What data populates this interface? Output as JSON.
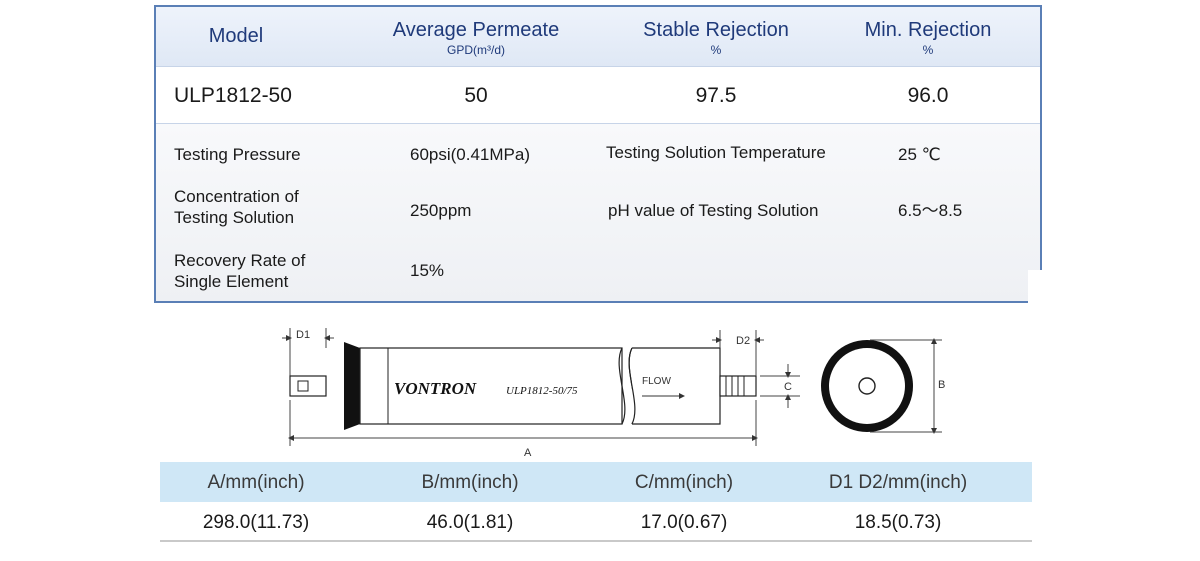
{
  "spec_table": {
    "headers": {
      "model": "Model",
      "avg_permeate": "Average Permeate",
      "avg_permeate_unit": "GPD(m³/d)",
      "stable_rejection": "Stable Rejection",
      "stable_rejection_unit": "%",
      "min_rejection": "Min. Rejection",
      "min_rejection_unit": "%"
    },
    "row": {
      "model": "ULP1812-50",
      "avg_permeate": "50",
      "stable_rejection": "97.5",
      "min_rejection": "96.0"
    },
    "conditions": {
      "testing_pressure_label": "Testing Pressure",
      "testing_pressure_value": "60psi(0.41MPa)",
      "temperature_label": "Testing Solution Temperature",
      "temperature_value": "25 ℃",
      "concentration_label_line1": "Concentration of",
      "concentration_label_line2": "Testing Solution",
      "concentration_value": "250ppm",
      "ph_label": "pH value of Testing Solution",
      "ph_value": "6.5～8.5",
      "recovery_label_line1": "Recovery Rate of",
      "recovery_label_line2": "Single Element",
      "recovery_value": "15%"
    }
  },
  "drawing": {
    "brand": "VONTRON",
    "model_text": "ULP1812-50/75",
    "flow_text": "FLOW",
    "dim_labels": {
      "a": "A",
      "b": "B",
      "c": "C",
      "d1": "D1",
      "d2": "D2"
    }
  },
  "dimensions_table": {
    "headers": [
      "A/mm(inch)",
      "B/mm(inch)",
      "C/mm(inch)",
      "D1 D2/mm(inch)"
    ],
    "values": [
      "298.0(11.73)",
      "46.0(1.81)",
      "17.0(0.67)",
      "18.5(0.73)"
    ]
  }
}
